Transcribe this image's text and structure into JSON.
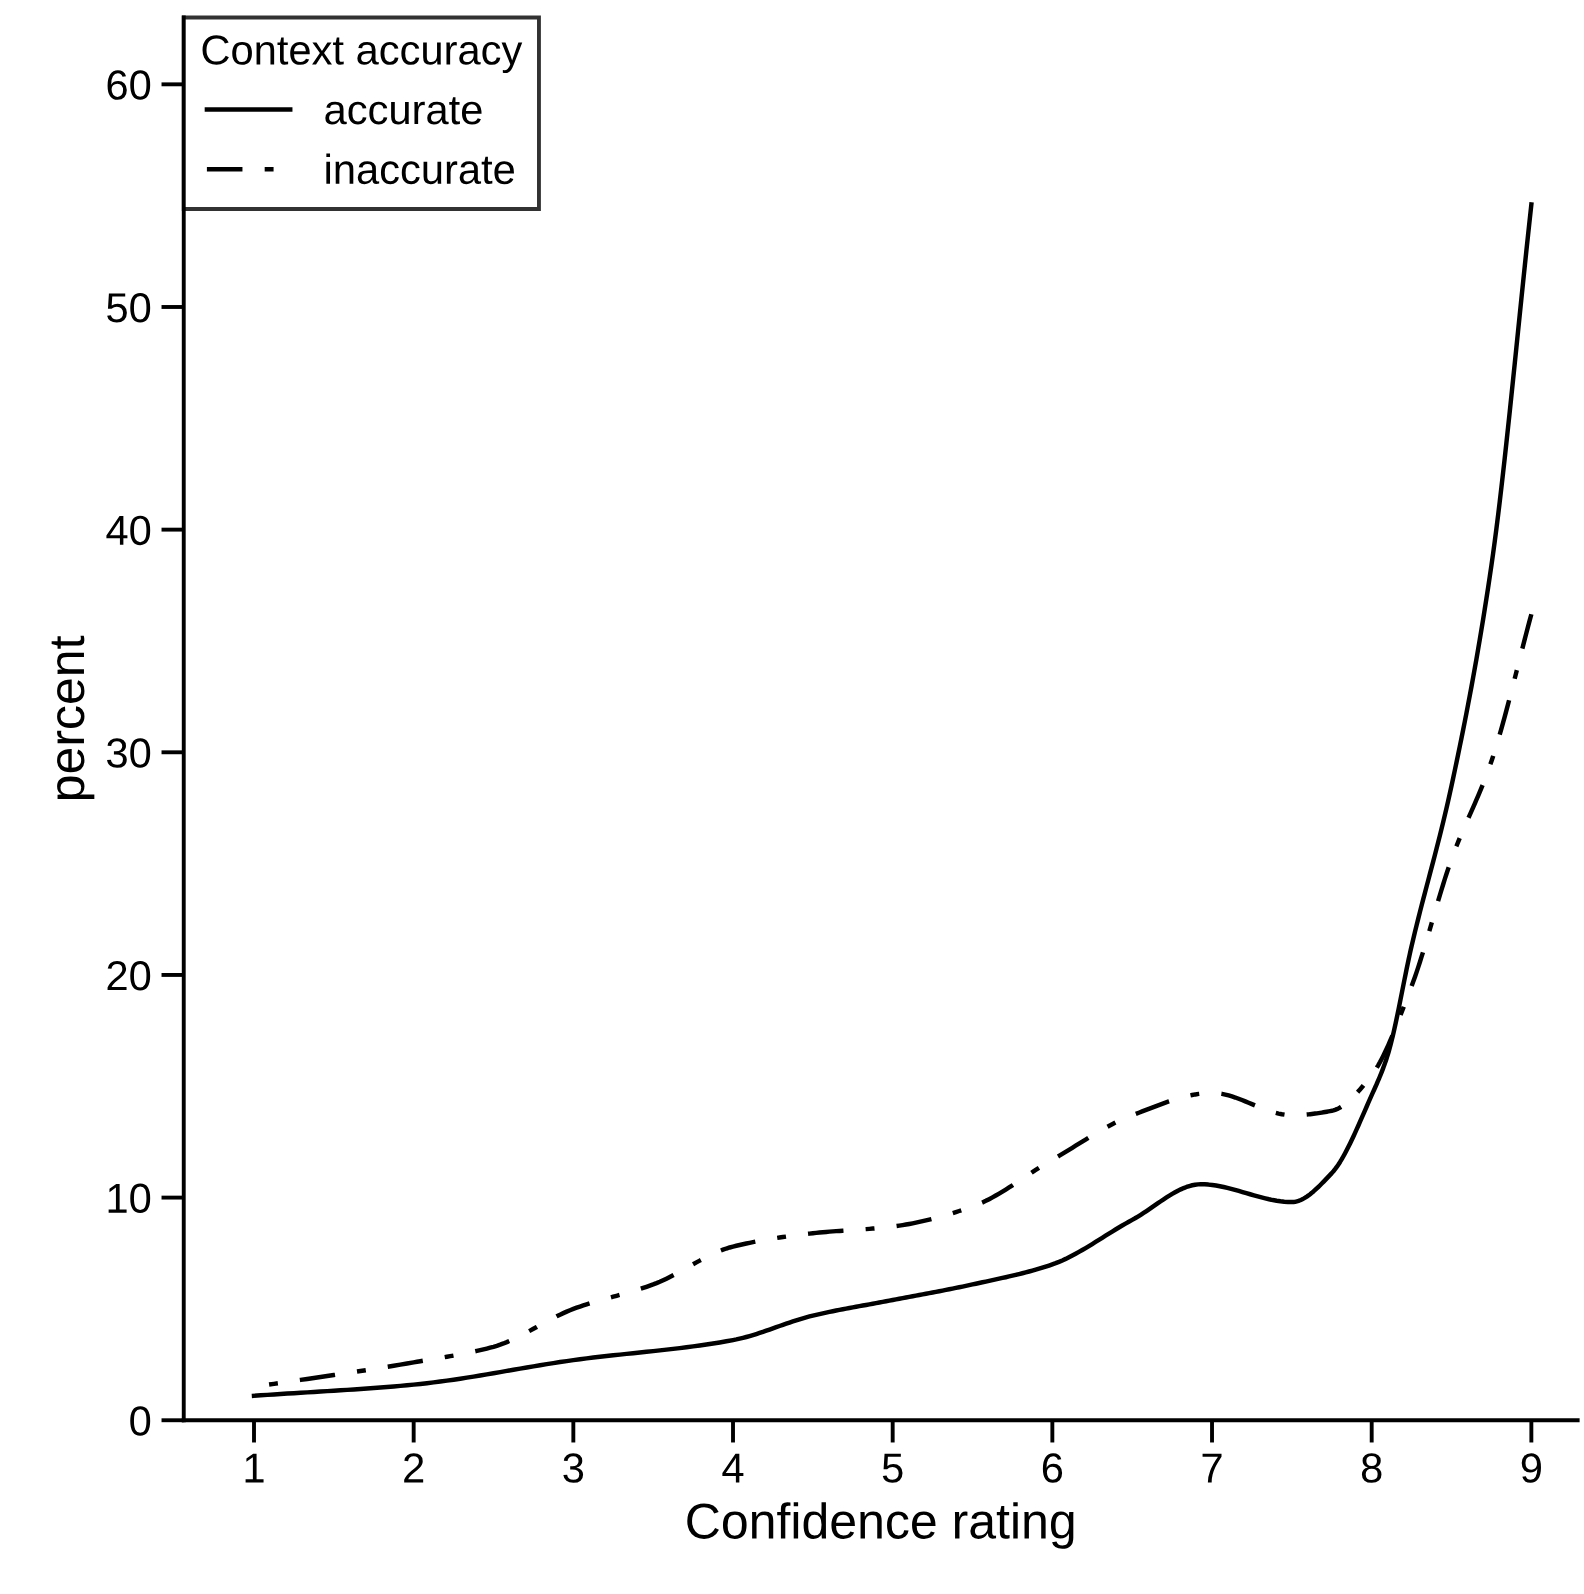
{
  "chart_data": {
    "type": "line",
    "xlabel": "Confidence rating",
    "ylabel": "percent",
    "legend_title": "Context accuracy",
    "legend": "top left",
    "grid": false,
    "marker": "none",
    "xlim": [
      0.56,
      9.29
    ],
    "ylim": [
      0,
      63
    ],
    "xticks": [
      1,
      2,
      3,
      4,
      5,
      6,
      7,
      8,
      9
    ],
    "yticks": [
      0,
      10,
      20,
      30,
      40,
      50,
      60
    ],
    "series": [
      {
        "name": "accurate",
        "color": "#000000",
        "line_style": "solid",
        "x": [
          1,
          2,
          3,
          4,
          4.5,
          5,
          5.5,
          6,
          6.5,
          6.93,
          7.5,
          7.75,
          8,
          8.1,
          8.25,
          8.5,
          8.75,
          9
        ],
        "values": [
          1.1,
          1.6,
          2.7,
          3.6,
          4.7,
          5.4,
          6.1,
          7.0,
          9.0,
          10.6,
          9.8,
          11.1,
          14.6,
          16.4,
          21.3,
          28.5,
          38.4,
          54.6
        ]
      },
      {
        "name": "inaccurate",
        "color": "#000000",
        "line_style": "dashdot",
        "x": [
          1,
          2,
          2.5,
          3,
          3.5,
          4,
          4.5,
          5,
          5.5,
          6,
          6.5,
          7,
          7.5,
          7.75,
          8,
          8.25,
          8.5,
          8.75,
          9
        ],
        "values": [
          1.5,
          2.6,
          3.3,
          5.0,
          6.1,
          7.8,
          8.4,
          8.7,
          9.6,
          11.7,
          13.7,
          14.7,
          13.7,
          13.9,
          15.5,
          19.5,
          25.2,
          29.6,
          36.2
        ]
      }
    ]
  }
}
